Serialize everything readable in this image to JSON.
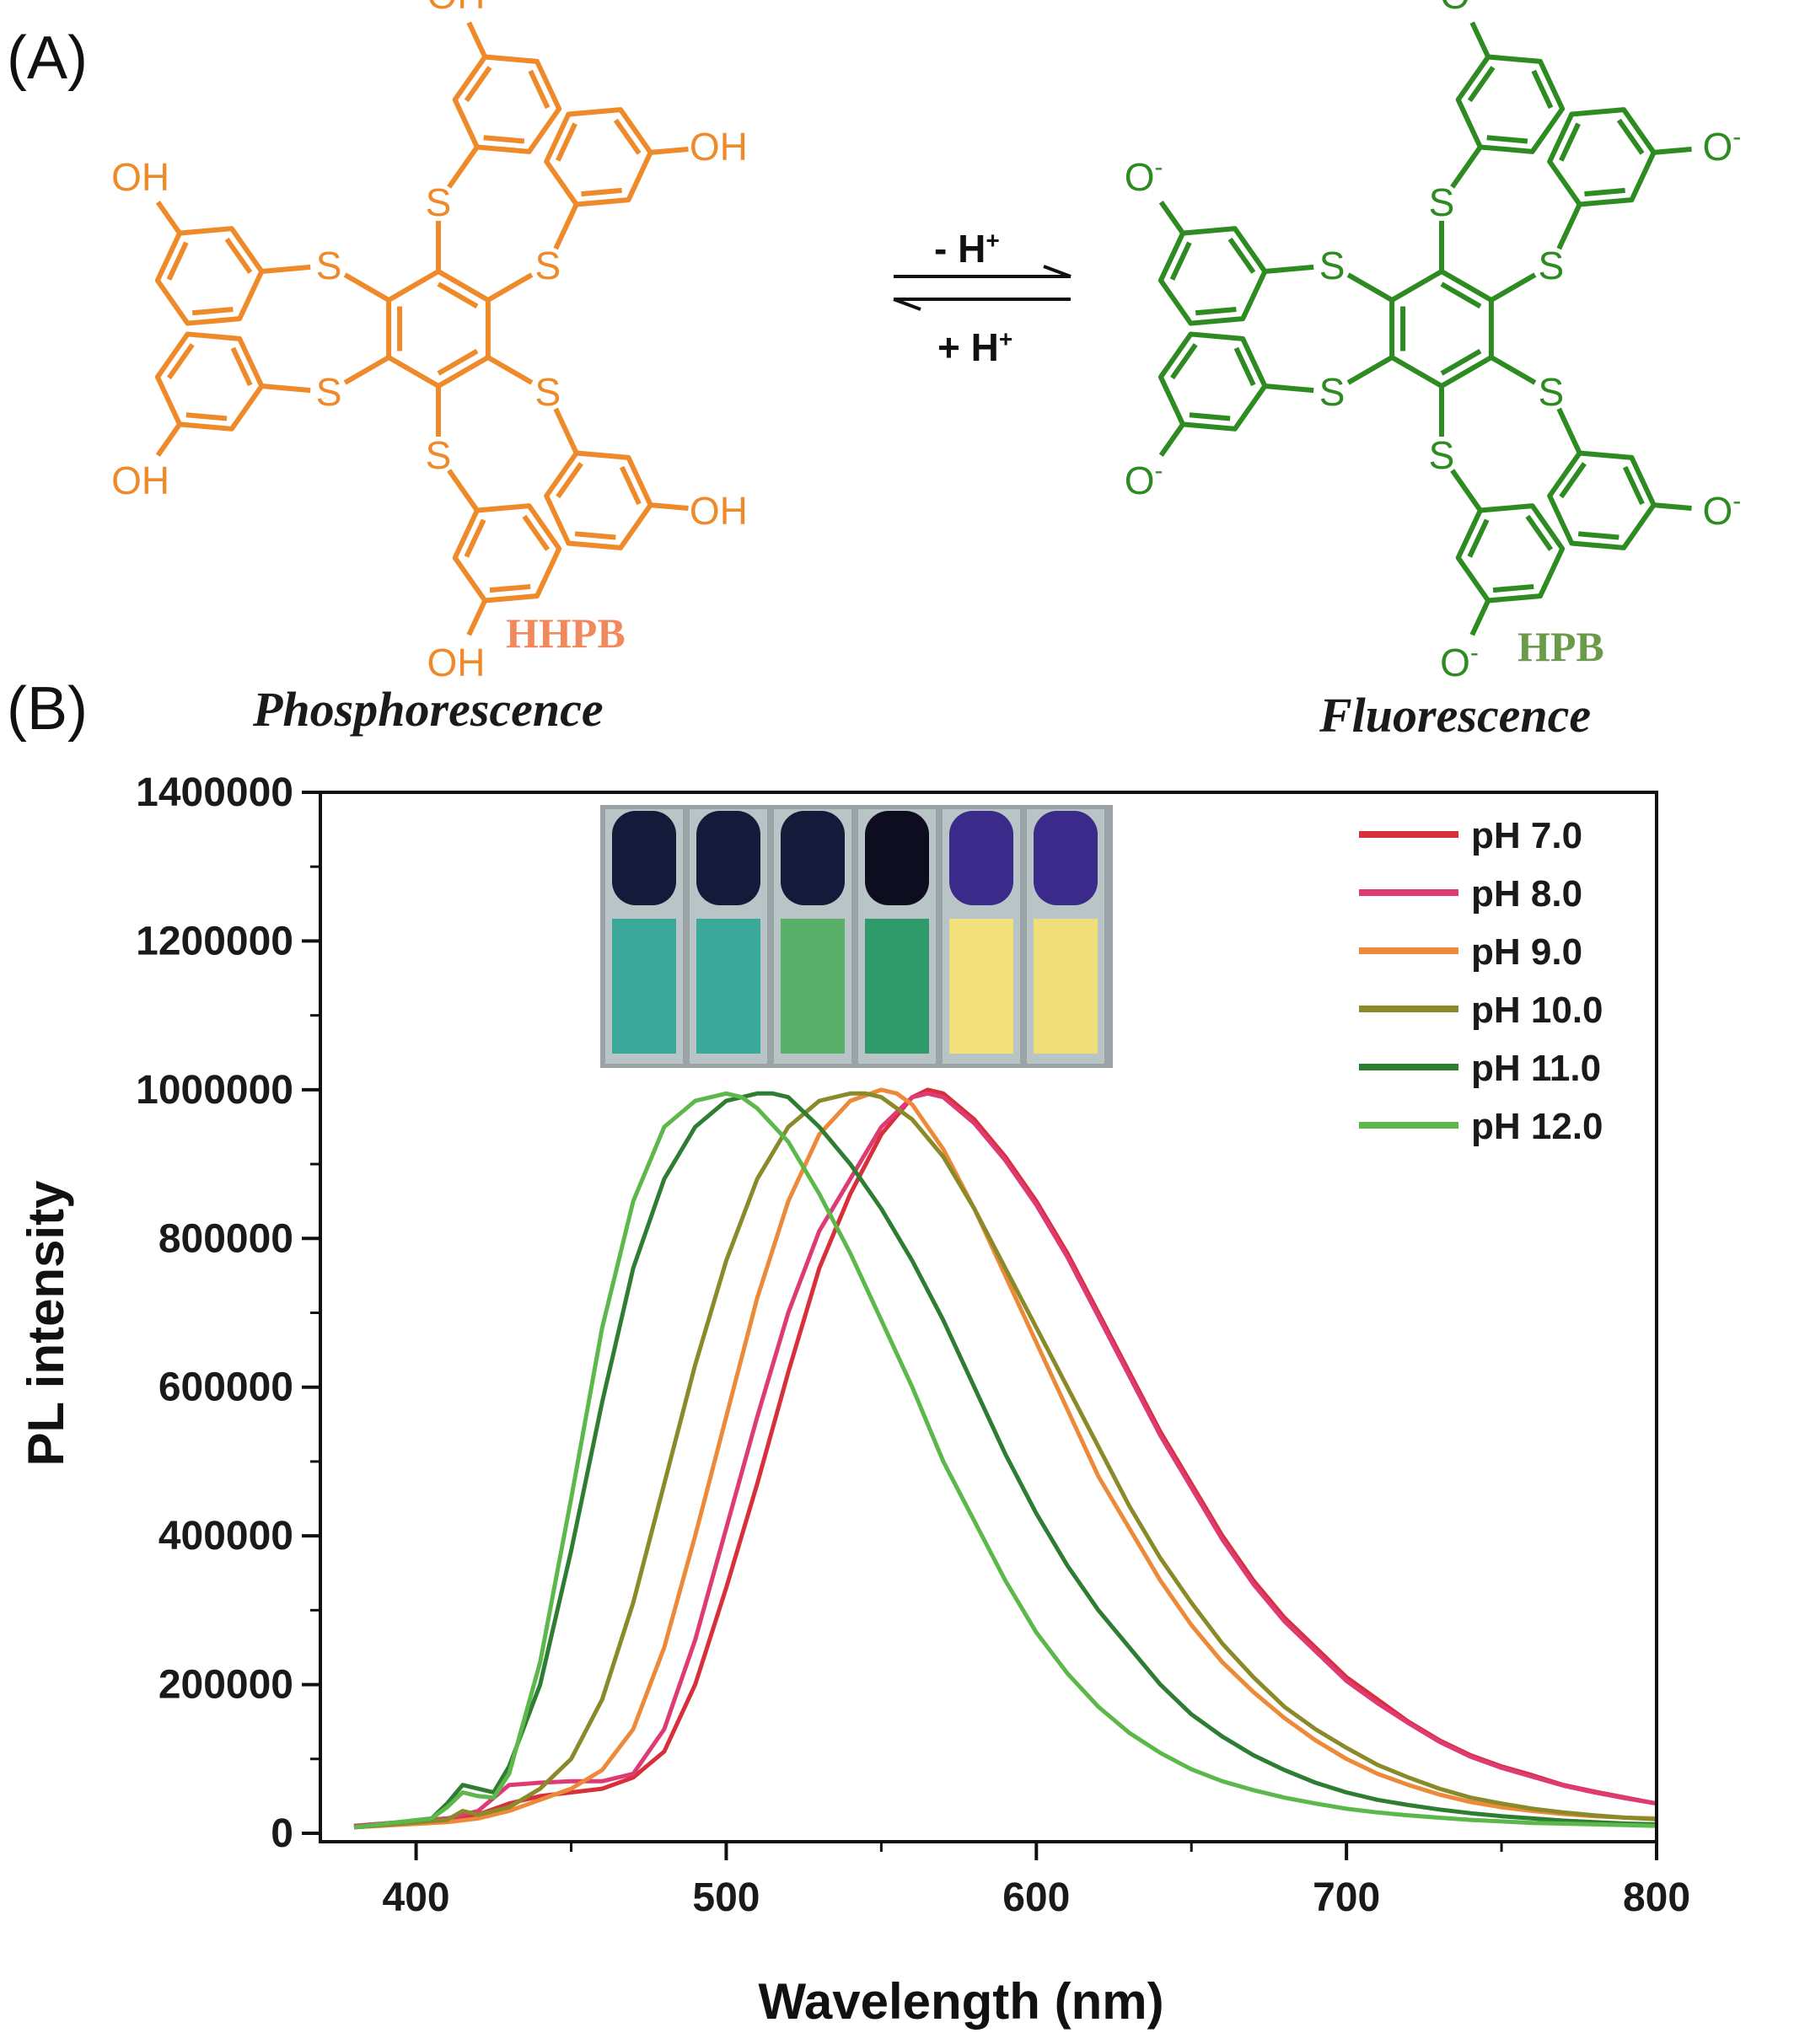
{
  "panels": {
    "a": "(A)",
    "b": "(B)"
  },
  "scheme": {
    "left_molecule": {
      "name": "HHPB",
      "caption": "Phosphorescence",
      "color": "#ee8a2a",
      "name_color": "#f08a5d",
      "substituent": "OH",
      "linker": "S"
    },
    "right_molecule": {
      "name": "HPB",
      "caption": "Fluorescence",
      "color": "#2e8b22",
      "name_color": "#6a9a4a",
      "substituent": "O",
      "charge": "-",
      "linker": "S"
    },
    "equilibrium": {
      "forward": "- H",
      "reverse": "+ H",
      "superscript": "+"
    }
  },
  "chart_data": {
    "type": "line",
    "xlabel": "Wavelength (nm)",
    "ylabel": "PL intensity",
    "xlim": [
      380,
      800
    ],
    "ylim": [
      0,
      1400000
    ],
    "xticks": [
      400,
      500,
      600,
      700,
      800
    ],
    "yticks": [
      0,
      200000,
      400000,
      600000,
      800000,
      1000000,
      1200000,
      1400000
    ],
    "legend_position": "top-right",
    "inset": "photo of six cuvettes under UV light: four teal/green, two yellow",
    "series": [
      {
        "name": "pH 7.0",
        "color": "#d8303a",
        "x": [
          380,
          410,
          420,
          430,
          440,
          450,
          460,
          470,
          480,
          490,
          500,
          510,
          520,
          530,
          540,
          550,
          560,
          565,
          570,
          580,
          590,
          600,
          610,
          620,
          630,
          640,
          650,
          660,
          670,
          680,
          690,
          700,
          710,
          720,
          730,
          740,
          750,
          760,
          770,
          780,
          790,
          800
        ],
        "y": [
          10000,
          20000,
          25000,
          40000,
          50000,
          55000,
          60000,
          75000,
          110000,
          200000,
          330000,
          470000,
          620000,
          760000,
          860000,
          940000,
          990000,
          1000000,
          995000,
          960000,
          910000,
          850000,
          780000,
          700000,
          620000,
          540000,
          470000,
          400000,
          340000,
          290000,
          250000,
          210000,
          180000,
          150000,
          125000,
          105000,
          90000,
          78000,
          65000,
          56000,
          48000,
          40000
        ]
      },
      {
        "name": "pH 8.0",
        "color": "#de3a74",
        "x": [
          380,
          410,
          420,
          430,
          440,
          450,
          460,
          470,
          480,
          490,
          500,
          510,
          520,
          530,
          540,
          550,
          560,
          565,
          570,
          580,
          590,
          600,
          610,
          620,
          630,
          640,
          650,
          660,
          670,
          680,
          690,
          700,
          710,
          720,
          730,
          740,
          750,
          760,
          770,
          780,
          790,
          800
        ],
        "y": [
          10000,
          20000,
          30000,
          65000,
          68000,
          70000,
          70000,
          80000,
          140000,
          260000,
          410000,
          560000,
          700000,
          810000,
          880000,
          950000,
          990000,
          995000,
          990000,
          955000,
          905000,
          845000,
          775000,
          695000,
          615000,
          535000,
          465000,
          395000,
          335000,
          285000,
          245000,
          205000,
          175000,
          148000,
          123000,
          103000,
          88000,
          76000,
          64000,
          55000,
          47000,
          40000
        ]
      },
      {
        "name": "pH 9.0",
        "color": "#ec8a3a",
        "x": [
          380,
          410,
          420,
          430,
          440,
          450,
          460,
          470,
          480,
          490,
          500,
          510,
          520,
          530,
          540,
          550,
          555,
          560,
          570,
          580,
          590,
          600,
          610,
          620,
          630,
          640,
          650,
          660,
          670,
          680,
          690,
          700,
          710,
          720,
          730,
          740,
          750,
          760,
          770,
          780,
          790,
          800
        ],
        "y": [
          8000,
          15000,
          20000,
          30000,
          45000,
          60000,
          85000,
          140000,
          250000,
          400000,
          560000,
          720000,
          850000,
          940000,
          985000,
          1000000,
          995000,
          980000,
          920000,
          840000,
          750000,
          660000,
          570000,
          480000,
          410000,
          340000,
          280000,
          230000,
          190000,
          155000,
          125000,
          100000,
          80000,
          65000,
          52000,
          42000,
          35000,
          30000,
          26000,
          23000,
          21000,
          20000
        ]
      },
      {
        "name": "pH 10.0",
        "color": "#8a8a2a",
        "x": [
          380,
          410,
          415,
          420,
          430,
          440,
          450,
          460,
          470,
          480,
          490,
          500,
          510,
          520,
          530,
          540,
          545,
          550,
          560,
          570,
          580,
          590,
          600,
          610,
          620,
          630,
          640,
          650,
          660,
          670,
          680,
          690,
          700,
          710,
          720,
          730,
          740,
          750,
          760,
          770,
          780,
          790,
          800
        ],
        "y": [
          8000,
          18000,
          30000,
          25000,
          35000,
          60000,
          100000,
          180000,
          310000,
          470000,
          630000,
          770000,
          880000,
          950000,
          985000,
          995000,
          995000,
          990000,
          960000,
          910000,
          840000,
          760000,
          680000,
          600000,
          520000,
          440000,
          370000,
          310000,
          255000,
          210000,
          170000,
          140000,
          115000,
          92000,
          75000,
          60000,
          48000,
          40000,
          33000,
          28000,
          24000,
          21000,
          19000
        ]
      },
      {
        "name": "pH 11.0",
        "color": "#2e7d32",
        "x": [
          380,
          405,
          410,
          415,
          420,
          425,
          430,
          440,
          450,
          460,
          470,
          480,
          490,
          500,
          510,
          515,
          520,
          530,
          540,
          550,
          560,
          570,
          580,
          590,
          600,
          610,
          620,
          630,
          640,
          650,
          660,
          670,
          680,
          690,
          700,
          710,
          720,
          730,
          740,
          750,
          760,
          770,
          780,
          790,
          800
        ],
        "y": [
          8000,
          20000,
          40000,
          65000,
          60000,
          55000,
          90000,
          200000,
          380000,
          580000,
          760000,
          880000,
          950000,
          985000,
          995000,
          995000,
          990000,
          950000,
          900000,
          840000,
          770000,
          690000,
          600000,
          510000,
          430000,
          360000,
          300000,
          250000,
          200000,
          160000,
          130000,
          105000,
          85000,
          68000,
          55000,
          45000,
          38000,
          32000,
          27000,
          23000,
          20000,
          17000,
          15000,
          13000,
          12000
        ]
      },
      {
        "name": "pH 12.0",
        "color": "#5cb84a",
        "x": [
          380,
          405,
          410,
          415,
          420,
          425,
          430,
          440,
          450,
          460,
          470,
          480,
          490,
          500,
          505,
          510,
          520,
          530,
          540,
          550,
          560,
          570,
          580,
          590,
          600,
          610,
          620,
          630,
          640,
          650,
          660,
          670,
          680,
          690,
          700,
          710,
          720,
          730,
          740,
          750,
          760,
          770,
          780,
          790,
          800
        ],
        "y": [
          8000,
          20000,
          35000,
          55000,
          50000,
          48000,
          80000,
          230000,
          450000,
          680000,
          850000,
          950000,
          985000,
          995000,
          990000,
          975000,
          930000,
          860000,
          780000,
          690000,
          600000,
          500000,
          420000,
          340000,
          270000,
          215000,
          170000,
          135000,
          108000,
          86000,
          70000,
          58000,
          48000,
          40000,
          33000,
          28000,
          24000,
          21000,
          18000,
          16000,
          14000,
          13000,
          12000,
          11000,
          10000
        ]
      }
    ]
  }
}
